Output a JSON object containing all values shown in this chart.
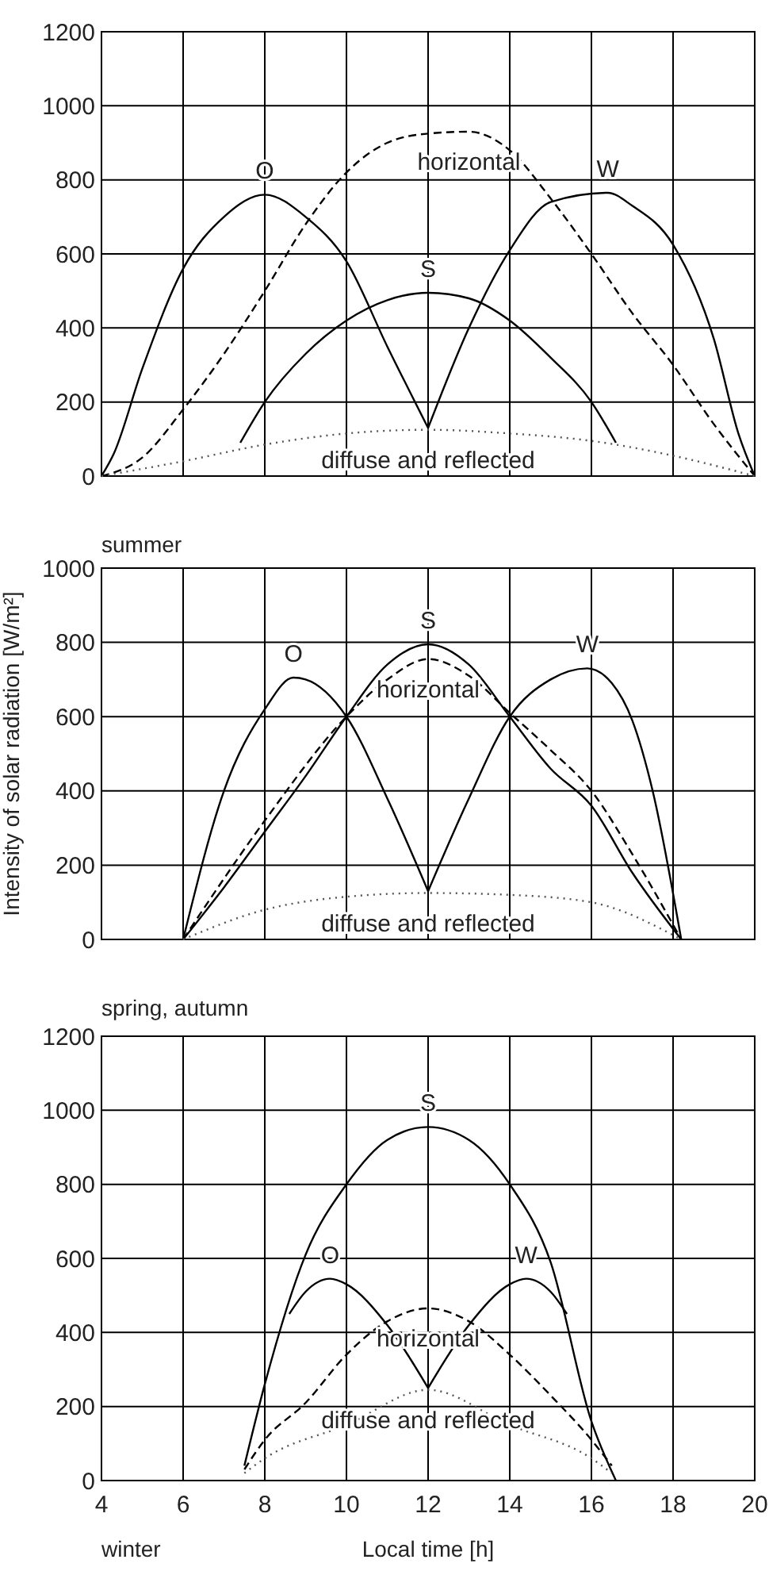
{
  "chart_data": [
    {
      "type": "line",
      "xlim": [
        4,
        20
      ],
      "xticks": [
        4,
        6,
        8,
        10,
        12,
        14,
        16,
        18,
        20
      ],
      "ylim": [
        0,
        1200
      ],
      "yticks": [
        0,
        200,
        400,
        600,
        800,
        1000,
        1200
      ],
      "grid": true,
      "tick_labels": "y",
      "marker": "none",
      "annotations": [
        "summer"
      ],
      "series": [
        {
          "name": "O",
          "color": "#000000",
          "line_style": "solid",
          "x": [
            4,
            4.3,
            5,
            6,
            7,
            8,
            9,
            10,
            11,
            12
          ],
          "values": [
            0,
            60,
            290,
            560,
            700,
            760,
            700,
            580,
            350,
            130
          ]
        },
        {
          "name": "W",
          "color": "#000000",
          "line_style": "solid",
          "x": [
            12,
            13,
            14,
            15,
            16.4,
            17,
            18,
            19,
            19.6,
            20
          ],
          "values": [
            130,
            400,
            610,
            740,
            765,
            730,
            625,
            370,
            115,
            0
          ]
        },
        {
          "name": "S",
          "color": "#000000",
          "line_style": "solid",
          "x": [
            7.4,
            8,
            9,
            10,
            11,
            12,
            13,
            14,
            15,
            16,
            16.6
          ],
          "values": [
            90,
            200,
            330,
            420,
            475,
            495,
            480,
            420,
            320,
            200,
            90
          ]
        },
        {
          "name": "horizontal",
          "color": "#000000",
          "line_style": "dashed",
          "x": [
            4,
            5,
            6,
            7,
            8,
            9,
            10,
            11,
            12,
            13,
            14,
            15,
            16,
            17,
            18,
            19,
            20
          ],
          "values": [
            0,
            50,
            180,
            330,
            500,
            680,
            820,
            900,
            925,
            930,
            880,
            750,
            600,
            440,
            300,
            140,
            0
          ]
        },
        {
          "name": "diffuse and reflected",
          "color": "#555555",
          "line_style": "dotted",
          "x": [
            4,
            6,
            8,
            10,
            12,
            14,
            16,
            18,
            20
          ],
          "values": [
            0,
            40,
            85,
            115,
            125,
            115,
            95,
            55,
            0
          ]
        }
      ]
    },
    {
      "type": "line",
      "xlim": [
        4,
        20
      ],
      "xticks": [
        4,
        6,
        8,
        10,
        12,
        14,
        16,
        18,
        20
      ],
      "ylim": [
        0,
        1000
      ],
      "yticks": [
        0,
        200,
        400,
        600,
        800,
        1000
      ],
      "grid": true,
      "tick_labels": "y",
      "marker": "none",
      "ylabel": "Intensity of solar radiation  [W/m²]",
      "annotations": [
        "spring, autumn"
      ],
      "series": [
        {
          "name": "O",
          "color": "#000000",
          "line_style": "solid",
          "x": [
            6,
            7,
            8,
            8.7,
            9,
            10,
            11,
            12
          ],
          "values": [
            0,
            400,
            620,
            705,
            700,
            600,
            380,
            130
          ]
        },
        {
          "name": "W",
          "color": "#000000",
          "line_style": "solid",
          "x": [
            12,
            13,
            14,
            15,
            15.9,
            16.5,
            17,
            17.5,
            18.2
          ],
          "values": [
            130,
            380,
            600,
            700,
            730,
            690,
            590,
            400,
            0
          ]
        },
        {
          "name": "S",
          "color": "#000000",
          "line_style": "solid",
          "x": [
            6,
            7,
            8,
            9,
            10,
            11,
            12,
            13,
            14,
            15,
            16,
            17,
            18.2
          ],
          "values": [
            0,
            140,
            290,
            440,
            600,
            740,
            795,
            740,
            600,
            460,
            360,
            180,
            0
          ]
        },
        {
          "name": "horizontal",
          "color": "#000000",
          "line_style": "dashed",
          "x": [
            6,
            8,
            10,
            11,
            12,
            13,
            14,
            15,
            16,
            17,
            18.2
          ],
          "values": [
            0,
            320,
            600,
            700,
            755,
            710,
            610,
            510,
            400,
            230,
            0
          ]
        },
        {
          "name": "diffuse and reflected",
          "color": "#555555",
          "line_style": "dotted",
          "x": [
            6,
            8,
            10,
            12,
            14,
            16,
            18.2
          ],
          "values": [
            0,
            80,
            115,
            125,
            120,
            100,
            0
          ]
        }
      ]
    },
    {
      "type": "line",
      "xlim": [
        4,
        20
      ],
      "xticks": [
        4,
        6,
        8,
        10,
        12,
        14,
        16,
        18,
        20
      ],
      "ylim": [
        0,
        1200
      ],
      "yticks": [
        0,
        200,
        400,
        600,
        800,
        1000,
        1200
      ],
      "grid": true,
      "marker": "none",
      "xlabel": "Local time  [h]",
      "annotations": [
        "winter"
      ],
      "series": [
        {
          "name": "S",
          "color": "#000000",
          "line_style": "solid",
          "x": [
            7.5,
            8,
            9,
            10,
            11,
            12,
            13,
            14,
            15,
            16,
            16.6
          ],
          "values": [
            40,
            260,
            610,
            800,
            920,
            955,
            920,
            800,
            590,
            160,
            0
          ]
        },
        {
          "name": "O",
          "color": "#000000",
          "line_style": "solid",
          "x": [
            8.6,
            9,
            9.6,
            10,
            11,
            12
          ],
          "values": [
            450,
            510,
            545,
            530,
            420,
            250
          ]
        },
        {
          "name": "W",
          "color": "#000000",
          "line_style": "solid",
          "x": [
            12,
            13,
            14,
            14.4,
            15,
            15.4
          ],
          "values": [
            250,
            420,
            530,
            545,
            510,
            450
          ]
        },
        {
          "name": "horizontal",
          "color": "#000000",
          "line_style": "dashed",
          "x": [
            7.5,
            8,
            9,
            10,
            11,
            12,
            13,
            14,
            15,
            16,
            16.5
          ],
          "values": [
            30,
            110,
            210,
            340,
            430,
            465,
            430,
            340,
            230,
            110,
            40
          ]
        },
        {
          "name": "diffuse and reflected",
          "color": "#555555",
          "line_style": "dotted",
          "x": [
            7.5,
            8,
            10,
            12,
            14,
            16,
            16.5
          ],
          "values": [
            20,
            60,
            150,
            245,
            150,
            60,
            20
          ]
        }
      ]
    }
  ]
}
